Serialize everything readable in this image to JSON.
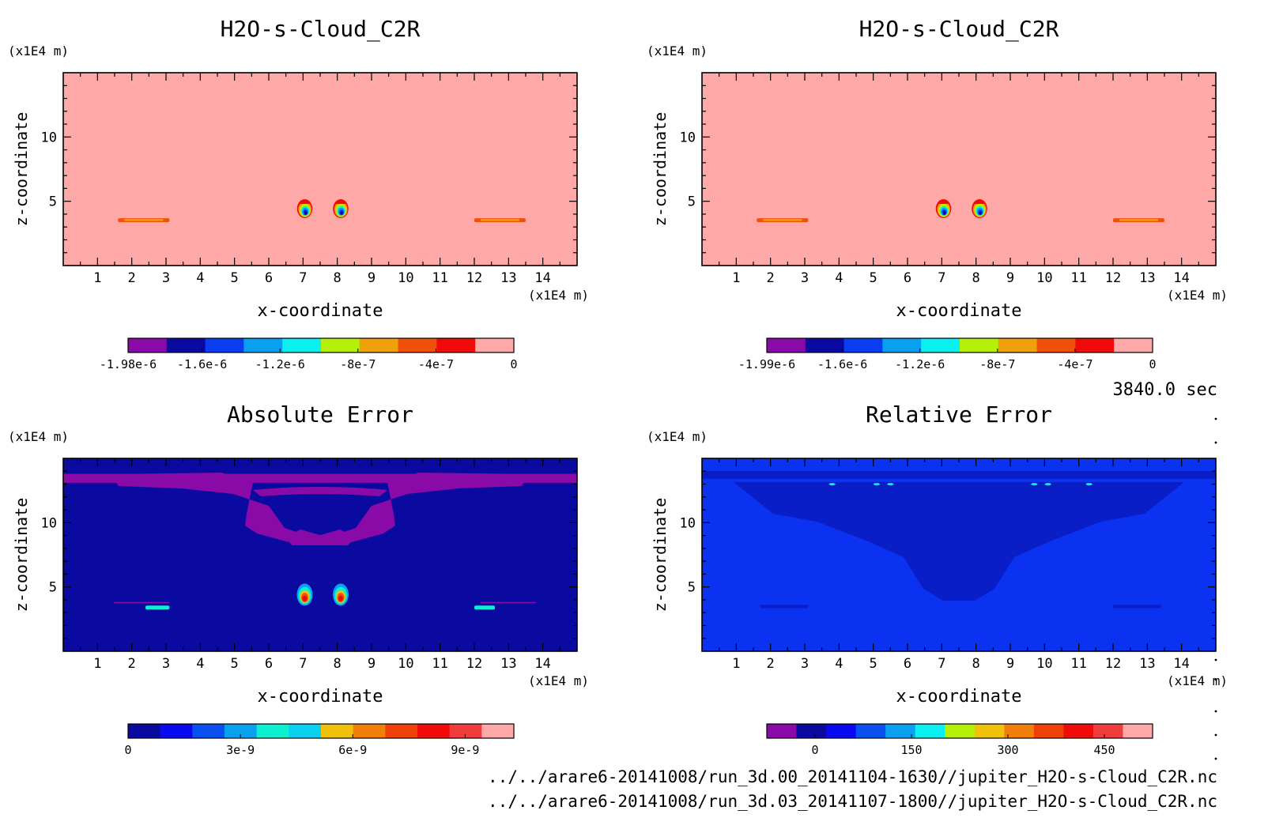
{
  "time_label": "3840.0 sec",
  "files": [
    "../../arare6-20141008/run_3d.00_20141104-1630//jupiter_H2O-s-Cloud_C2R.nc",
    "../../arare6-20141008/run_3d.03_20141107-1800//jupiter_H2O-s-Cloud_C2R.nc"
  ],
  "chart_data": [
    {
      "type": "heatmap",
      "title": "H2O-s-Cloud_C2R",
      "xlabel": "x-coordinate",
      "ylabel": "z-coordinate",
      "x_unit": "(x1E4 m)",
      "y_unit": "(x1E4 m)",
      "xlim": [
        0,
        15
      ],
      "ylim": [
        0,
        15
      ],
      "x_ticks": [
        1,
        2,
        3,
        4,
        5,
        6,
        7,
        8,
        9,
        10,
        11,
        12,
        13,
        14
      ],
      "y_ticks": [
        5,
        10
      ],
      "background_color": "#ffa8a8",
      "colorbar": {
        "colors": [
          "#8a0aa8",
          "#0a0aa0",
          "#0a3cf0",
          "#0aa0f0",
          "#0af0f0",
          "#b4f00a",
          "#f0a00a",
          "#f0500a",
          "#f00a0a",
          "#ffa8a8"
        ],
        "tick_labels": [
          "-1.98e-6",
          "-1.6e-6",
          "-1.2e-6",
          "-8e-7",
          "-4e-7",
          "0"
        ],
        "tick_values": [
          -1.98e-06,
          -1.6e-06,
          -1.2e-06,
          -8e-07,
          -4e-07,
          0
        ],
        "range": [
          -1.98e-06,
          0
        ]
      },
      "features": [
        {
          "kind": "blob",
          "x": 7.05,
          "z": 4.3,
          "note": "negative core"
        },
        {
          "kind": "blob",
          "x": 8.1,
          "z": 4.3,
          "note": "negative core"
        },
        {
          "kind": "band",
          "x_range": [
            1.6,
            3.1
          ],
          "z": 3.5
        },
        {
          "kind": "band",
          "x_range": [
            12.0,
            13.5
          ],
          "z": 3.5
        }
      ]
    },
    {
      "type": "heatmap",
      "title": "H2O-s-Cloud_C2R",
      "xlabel": "x-coordinate",
      "ylabel": "z-coordinate",
      "x_unit": "(x1E4 m)",
      "y_unit": "(x1E4 m)",
      "xlim": [
        0,
        15
      ],
      "ylim": [
        0,
        15
      ],
      "x_ticks": [
        1,
        2,
        3,
        4,
        5,
        6,
        7,
        8,
        9,
        10,
        11,
        12,
        13,
        14
      ],
      "y_ticks": [
        5,
        10
      ],
      "background_color": "#ffa8a8",
      "colorbar": {
        "colors": [
          "#8a0aa8",
          "#0a0aa0",
          "#0a3cf0",
          "#0aa0f0",
          "#0af0f0",
          "#b4f00a",
          "#f0a00a",
          "#f0500a",
          "#f00a0a",
          "#ffa8a8"
        ],
        "tick_labels": [
          "-1.99e-6",
          "-1.6e-6",
          "-1.2e-6",
          "-8e-7",
          "-4e-7",
          "0"
        ],
        "tick_values": [
          -1.99e-06,
          -1.6e-06,
          -1.2e-06,
          -8e-07,
          -4e-07,
          0
        ],
        "range": [
          -1.99e-06,
          0
        ]
      },
      "features": [
        {
          "kind": "blob",
          "x": 7.05,
          "z": 4.3,
          "note": "negative core"
        },
        {
          "kind": "blob",
          "x": 8.1,
          "z": 4.3,
          "note": "negative core"
        },
        {
          "kind": "band",
          "x_range": [
            1.6,
            3.1
          ],
          "z": 3.5
        },
        {
          "kind": "band",
          "x_range": [
            12.0,
            13.5
          ],
          "z": 3.5
        }
      ]
    },
    {
      "type": "heatmap",
      "title": "Absolute Error",
      "xlabel": "x-coordinate",
      "ylabel": "z-coordinate",
      "x_unit": "(x1E4 m)",
      "y_unit": "(x1E4 m)",
      "xlim": [
        0,
        15
      ],
      "ylim": [
        0,
        15
      ],
      "x_ticks": [
        1,
        2,
        3,
        4,
        5,
        6,
        7,
        8,
        9,
        10,
        11,
        12,
        13,
        14
      ],
      "y_ticks": [
        5,
        10
      ],
      "background_color": "#0a0aa0",
      "colorbar": {
        "colors": [
          "#0a0aa0",
          "#0a0af0",
          "#0a50f0",
          "#0aa0f0",
          "#0af0d0",
          "#0ad0f0",
          "#f0c00a",
          "#f0800a",
          "#f0400a",
          "#f00a0a",
          "#f03c3c",
          "#ffa8a8"
        ],
        "tick_labels": [
          "0",
          "3e-9",
          "6e-9",
          "9e-9"
        ],
        "tick_values": [
          0,
          3e-09,
          6e-09,
          9e-09
        ],
        "range": [
          0,
          1.03e-08
        ]
      },
      "features": [
        {
          "kind": "blob",
          "x": 7.05,
          "z": 4.4,
          "note": "high error"
        },
        {
          "kind": "blob",
          "x": 8.1,
          "z": 4.4,
          "note": "high error"
        },
        {
          "kind": "band",
          "x_range": [
            2.4,
            3.1
          ],
          "z": 3.4
        },
        {
          "kind": "band",
          "x_range": [
            12.0,
            12.6
          ],
          "z": 3.4
        },
        {
          "kind": "region",
          "z_range": [
            13.1,
            13.8
          ],
          "note": "purple upper layer"
        }
      ]
    },
    {
      "type": "heatmap",
      "title": "Relative Error",
      "xlabel": "x-coordinate",
      "ylabel": "z-coordinate",
      "x_unit": "(x1E4 m)",
      "y_unit": "(x1E4 m)",
      "xlim": [
        0,
        15
      ],
      "ylim": [
        0,
        15
      ],
      "x_ticks": [
        1,
        2,
        3,
        4,
        5,
        6,
        7,
        8,
        9,
        10,
        11,
        12,
        13,
        14
      ],
      "y_ticks": [
        5,
        10
      ],
      "background_color": "#0a32f0",
      "colorbar": {
        "colors": [
          "#8a0aa8",
          "#0a0aa0",
          "#0a0af0",
          "#0a50f0",
          "#0aa0f0",
          "#0af0f0",
          "#b4f00a",
          "#f0c00a",
          "#f0800a",
          "#f0400a",
          "#f00a0a",
          "#f03c3c",
          "#ffa8a8"
        ],
        "tick_labels": [
          "0",
          "150",
          "300",
          "450"
        ],
        "tick_values": [
          0,
          150,
          300,
          450
        ],
        "range": [
          -75,
          525
        ]
      },
      "features": [
        {
          "kind": "region",
          "note": "darker blue plume centered x=7.5",
          "z_range": [
            4,
            12.5
          ]
        },
        {
          "kind": "spots",
          "z": 12.5,
          "x": [
            3.8,
            5.1,
            5.5,
            9.7,
            10.1,
            11.3
          ]
        }
      ]
    }
  ]
}
